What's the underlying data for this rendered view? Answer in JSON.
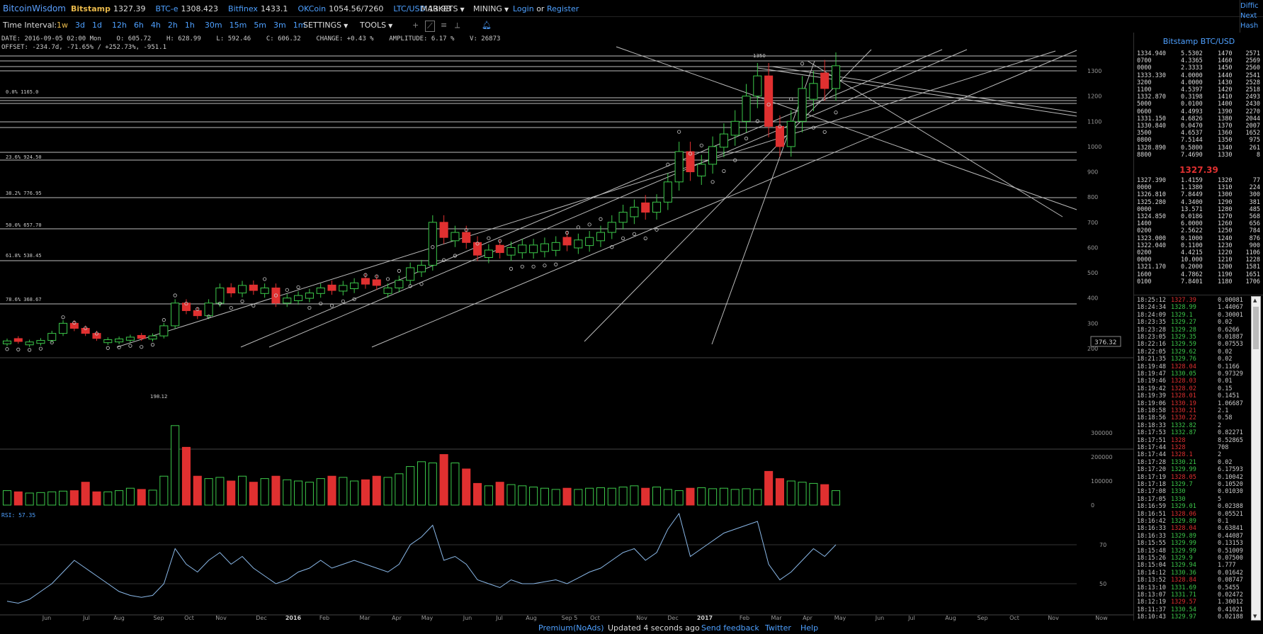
{
  "topbar": {
    "logo": "BitcoinWisdom",
    "tickers": [
      {
        "name": "Bitstamp",
        "price": "1327.39",
        "highlight": true
      },
      {
        "name": "BTC-e",
        "price": "1308.423",
        "highlight": false
      },
      {
        "name": "Bitfinex",
        "price": "1433.1",
        "highlight": false
      },
      {
        "name": "OKCoin",
        "price": "1054.56/7260",
        "highlight": false
      },
      {
        "name": "LTC/USD",
        "price": "13.98",
        "highlight": false
      }
    ],
    "markets_label": "MARKETS",
    "mining_label": "MINING",
    "login_label": "Login",
    "or_label": "or",
    "register_label": "Register",
    "right_links": [
      "Diffic",
      "Next",
      "Hash"
    ]
  },
  "toolbar": {
    "time_interval_label": "Time Interval:",
    "intervals": [
      "1w",
      "3d",
      "1d",
      "12h",
      "6h",
      "4h",
      "2h",
      "1h",
      "30m",
      "15m",
      "5m",
      "3m",
      "1m"
    ],
    "active_interval": "1w",
    "settings_label": "SETTINGS",
    "tools_label": "TOOLS"
  },
  "chart_info": {
    "line1": "DATE: 2016-09-05 02:00 Mon    O: 605.72    H: 628.99    L: 592.46    C: 606.32    CHANGE: +0.43 %    AMPLITUDE: 6.17 %    V: 26873",
    "line2": "OFFSET: -234.7d, -71.65% / +252.73%, -951.1"
  },
  "chart_data": {
    "type": "candlestick",
    "price_axis": [
      "1300",
      "1200",
      "1100",
      "1000",
      "900",
      "800",
      "700",
      "600",
      "500",
      "400",
      "300",
      "200"
    ],
    "volume_axis": [
      "300000",
      "200000",
      "100000",
      "0"
    ],
    "rsi_axis": [
      "70",
      "50"
    ],
    "x_labels": [
      "Jun",
      "Jul",
      "Aug",
      "Sep",
      "Oct",
      "Nov",
      "Dec",
      "2016",
      "Feb",
      "Mar",
      "Apr",
      "May",
      "Jun",
      "Jul",
      "Aug",
      "Sep 5",
      "Oct",
      "Nov",
      "Dec",
      "2017",
      "Feb",
      "Mar",
      "Apr",
      "May",
      "Jun",
      "Jul",
      "Aug",
      "Sep",
      "Oct",
      "Nov",
      "Now"
    ],
    "fib_labels": [
      "0.0% 1165.0",
      "23.6% 924.50",
      "38.2% 776.95",
      "50.0% 657.70",
      "61.8% 538.45",
      "78.6% 368.67"
    ],
    "annotations": [
      "1350",
      "198.12",
      "376.32"
    ],
    "rsi_label": "RSI: 57.35",
    "closes": [
      230,
      228,
      226,
      232,
      260,
      300,
      280,
      260,
      240,
      235,
      238,
      245,
      240,
      250,
      290,
      380,
      350,
      330,
      380,
      440,
      420,
      450,
      430,
      440,
      380,
      400,
      410,
      420,
      440,
      430,
      450,
      460,
      455,
      450,
      440,
      470,
      520,
      530,
      700,
      640,
      660,
      620,
      570,
      590,
      580,
      600,
      610,
      610,
      615,
      620,
      610,
      630,
      640,
      660,
      700,
      740,
      760,
      740,
      780,
      860,
      980,
      900,
      930,
      1000,
      1050,
      1100,
      1200,
      1280,
      1080,
      1000,
      1100,
      1230,
      1250,
      1230,
      1320
    ],
    "bull": [
      1,
      0,
      1,
      1,
      1,
      1,
      0,
      0,
      0,
      1,
      1,
      1,
      0,
      1,
      1,
      1,
      0,
      0,
      1,
      1,
      0,
      1,
      0,
      1,
      0,
      1,
      1,
      1,
      1,
      0,
      1,
      1,
      0,
      0,
      1,
      1,
      1,
      1,
      1,
      0,
      1,
      0,
      0,
      1,
      0,
      1,
      1,
      1,
      1,
      1,
      0,
      1,
      1,
      1,
      1,
      1,
      1,
      0,
      1,
      1,
      1,
      0,
      1,
      1,
      1,
      1,
      1,
      1,
      0,
      0,
      1,
      1,
      1,
      0,
      1
    ],
    "volumes": [
      60,
      55,
      50,
      52,
      55,
      58,
      60,
      95,
      55,
      55,
      60,
      70,
      65,
      62,
      120,
      330,
      240,
      120,
      110,
      115,
      100,
      120,
      95,
      110,
      120,
      105,
      100,
      95,
      110,
      120,
      115,
      100,
      105,
      120,
      115,
      130,
      160,
      180,
      175,
      210,
      175,
      150,
      90,
      80,
      95,
      85,
      80,
      75,
      70,
      65,
      70,
      65,
      70,
      72,
      70,
      75,
      80,
      70,
      75,
      65,
      60,
      70,
      72,
      68,
      70,
      65,
      68,
      65,
      140,
      110,
      100,
      95,
      90,
      85,
      60
    ],
    "rsi": [
      41,
      40,
      42,
      46,
      50,
      56,
      62,
      58,
      54,
      50,
      46,
      44,
      43,
      44,
      50,
      68,
      60,
      56,
      62,
      66,
      60,
      64,
      58,
      54,
      50,
      52,
      56,
      58,
      62,
      58,
      60,
      62,
      60,
      58,
      56,
      60,
      70,
      74,
      80,
      62,
      64,
      60,
      52,
      50,
      48,
      52,
      50,
      50,
      51,
      52,
      50,
      53,
      56,
      58,
      62,
      66,
      68,
      62,
      66,
      78,
      86,
      64,
      68,
      72,
      76,
      78,
      80,
      82,
      60,
      52,
      56,
      62,
      68,
      64,
      70
    ]
  },
  "side": {
    "title": "Bitstamp BTC/USD",
    "asks": [
      [
        "1334.940",
        "5.5302",
        "1470",
        "2571"
      ],
      [
        "0700",
        "4.3365",
        "1460",
        "2569"
      ],
      [
        "0000",
        "2.3333",
        "1450",
        "2560"
      ],
      [
        "1333.330",
        "4.0000",
        "1440",
        "2541"
      ],
      [
        "3200",
        "4.0000",
        "1430",
        "2528"
      ],
      [
        "1100",
        "4.5397",
        "1420",
        "2518"
      ],
      [
        "1332.870",
        "0.3198",
        "1410",
        "2493"
      ],
      [
        "5000",
        "0.0100",
        "1400",
        "2430"
      ],
      [
        "0600",
        "4.4993",
        "1390",
        "2270"
      ],
      [
        "1331.150",
        "4.6826",
        "1380",
        "2044"
      ],
      [
        "1330.840",
        "0.0470",
        "1370",
        "2007"
      ],
      [
        "3500",
        "4.6537",
        "1360",
        "1652"
      ],
      [
        "0800",
        "7.5144",
        "1350",
        "975"
      ],
      [
        "1328.890",
        "0.5800",
        "1340",
        "261"
      ],
      [
        "8800",
        "7.4690",
        "1330",
        "8"
      ]
    ],
    "mid_price": "1327.39",
    "bids": [
      [
        "1327.390",
        "1.4159",
        "1320",
        "77"
      ],
      [
        "0000",
        "1.1380",
        "1310",
        "224"
      ],
      [
        "1326.810",
        "7.8449",
        "1300",
        "300"
      ],
      [
        "1325.280",
        "4.3400",
        "1290",
        "381"
      ],
      [
        "0000",
        "13.571",
        "1280",
        "485"
      ],
      [
        "1324.850",
        "0.0186",
        "1270",
        "568"
      ],
      [
        "1400",
        "6.0000",
        "1260",
        "656"
      ],
      [
        "0200",
        "2.5622",
        "1250",
        "784"
      ],
      [
        "1323.000",
        "0.1000",
        "1240",
        "876"
      ],
      [
        "1322.040",
        "0.1100",
        "1230",
        "900"
      ],
      [
        "0200",
        "4.4215",
        "1220",
        "1106"
      ],
      [
        "0000",
        "10.000",
        "1210",
        "1228"
      ],
      [
        "1321.170",
        "0.2000",
        "1200",
        "1581"
      ],
      [
        "1600",
        "4.7862",
        "1190",
        "1651"
      ],
      [
        "0100",
        "7.8401",
        "1180",
        "1706"
      ]
    ],
    "trades": [
      [
        "18:25:12",
        "1327.39",
        "0.00081",
        "dn"
      ],
      [
        "18:24:34",
        "1328.99",
        "1.44067",
        "up"
      ],
      [
        "18:24:09",
        "1329.1",
        "0.30001",
        "up"
      ],
      [
        "18:23:35",
        "1329.27",
        "0.02",
        "up"
      ],
      [
        "18:23:28",
        "1329.28",
        "0.6266",
        "up"
      ],
      [
        "18:23:05",
        "1329.35",
        "0.01887",
        "up"
      ],
      [
        "18:22:16",
        "1329.59",
        "0.07553",
        "up"
      ],
      [
        "18:22:05",
        "1329.62",
        "0.02",
        "up"
      ],
      [
        "18:21:35",
        "1329.76",
        "0.02",
        "up"
      ],
      [
        "18:19:48",
        "1328.04",
        "0.1166",
        "dn"
      ],
      [
        "18:19:47",
        "1330.05",
        "0.97329",
        "up"
      ],
      [
        "18:19:46",
        "1328.03",
        "0.01",
        "dn"
      ],
      [
        "18:19:42",
        "1328.02",
        "0.15",
        "dn"
      ],
      [
        "18:19:39",
        "1328.01",
        "0.1451",
        "dn"
      ],
      [
        "18:19:06",
        "1330.19",
        "1.06687",
        "dn"
      ],
      [
        "18:18:58",
        "1330.21",
        "2.1",
        "dn"
      ],
      [
        "18:18:56",
        "1330.22",
        "0.58",
        "dn"
      ],
      [
        "18:18:33",
        "1332.82",
        "2",
        "up"
      ],
      [
        "18:17:53",
        "1332.87",
        "0.82271",
        "up"
      ],
      [
        "18:17:51",
        "1328",
        "8.52865",
        "dn"
      ],
      [
        "18:17:44",
        "1328",
        "708",
        "dn"
      ],
      [
        "18:17:44",
        "1328.1",
        "2",
        "dn"
      ],
      [
        "18:17:28",
        "1330.21",
        "0.02",
        "up"
      ],
      [
        "18:17:20",
        "1329.99",
        "6.17593",
        "up"
      ],
      [
        "18:17:19",
        "1328.05",
        "0.10042",
        "dn"
      ],
      [
        "18:17:18",
        "1329.7",
        "0.10520",
        "up"
      ],
      [
        "18:17:08",
        "1330",
        "0.01030",
        "up"
      ],
      [
        "18:17:05",
        "1330",
        "5",
        "up"
      ],
      [
        "18:16:59",
        "1329.01",
        "0.02388",
        "up"
      ],
      [
        "18:16:51",
        "1328.06",
        "0.05521",
        "dn"
      ],
      [
        "18:16:42",
        "1329.89",
        "0.1",
        "up"
      ],
      [
        "18:16:33",
        "1328.04",
        "0.63841",
        "dn"
      ],
      [
        "18:16:33",
        "1329.89",
        "0.44087",
        "up"
      ],
      [
        "18:15:55",
        "1329.99",
        "0.13153",
        "up"
      ],
      [
        "18:15:48",
        "1329.99",
        "0.51009",
        "up"
      ],
      [
        "18:15:26",
        "1329.9",
        "0.07500",
        "up"
      ],
      [
        "18:15:04",
        "1329.94",
        "1.777",
        "up"
      ],
      [
        "18:14:12",
        "1330.36",
        "0.01642",
        "up"
      ],
      [
        "18:13:52",
        "1328.84",
        "0.08747",
        "dn"
      ],
      [
        "18:13:10",
        "1331.69",
        "0.5455",
        "up"
      ],
      [
        "18:13:07",
        "1331.71",
        "0.02472",
        "up"
      ],
      [
        "18:12:19",
        "1329.57",
        "1.30012",
        "dn"
      ],
      [
        "18:11:37",
        "1330.54",
        "0.41021",
        "up"
      ],
      [
        "18:10:43",
        "1329.97",
        "0.02188",
        "up"
      ]
    ]
  },
  "bottombar": {
    "premium": "Premium(NoAds)",
    "updated": "Updated 4 seconds ago",
    "feedback": "Send feedback",
    "twitter": "Twitter",
    "help": "Help"
  }
}
